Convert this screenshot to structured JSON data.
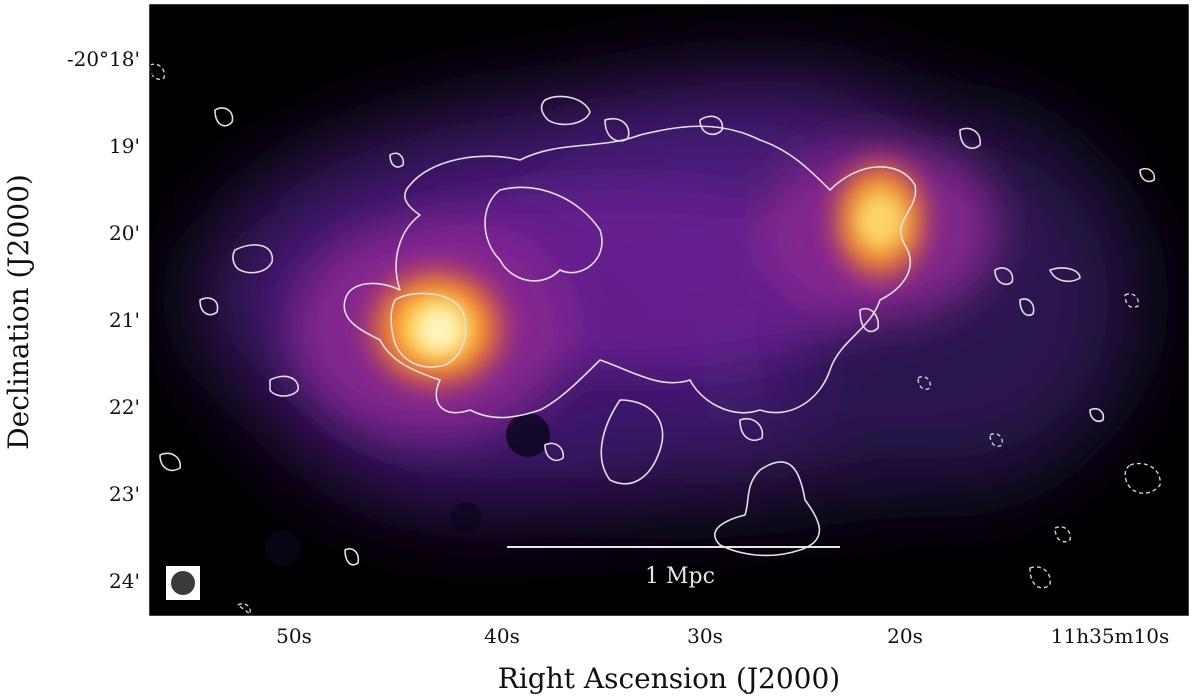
{
  "axes": {
    "x_title": "Right Ascension (J2000)",
    "y_title": "Declination (J2000)",
    "x_ticks": [
      "50s",
      "40s",
      "30s",
      "20s",
      "11h35m10s"
    ],
    "y_ticks": [
      "-20°18'",
      "19'",
      "20'",
      "21'",
      "22'",
      "23'",
      "24'"
    ]
  },
  "scale_bar": {
    "label": "1 Mpc"
  },
  "colors": {
    "background": "#000000",
    "glow_outer": "#3a1a6e",
    "glow_mid": "#a0328c",
    "glow_core": "#ffe36a",
    "contour": "#e0e0e0"
  }
}
